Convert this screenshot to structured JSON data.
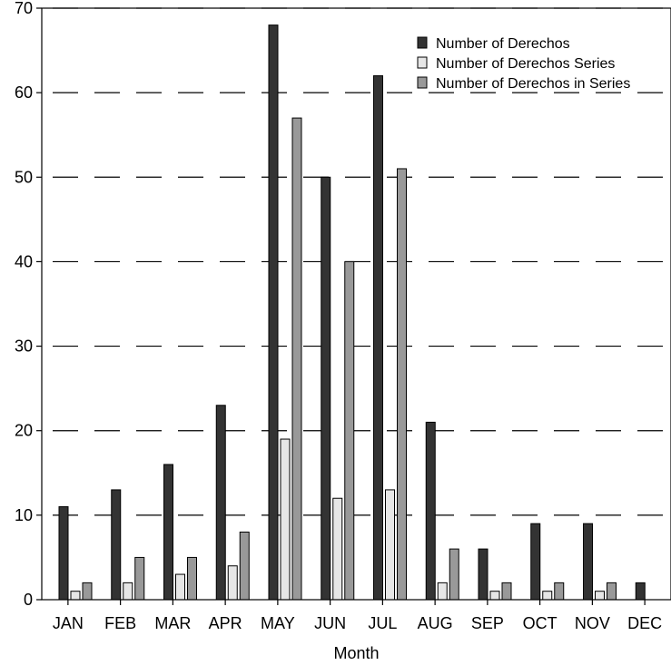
{
  "chart_data": {
    "type": "bar",
    "title": "",
    "xlabel": "Month",
    "ylabel": "",
    "ylim": [
      0,
      70
    ],
    "yticks": [
      0,
      10,
      20,
      30,
      40,
      50,
      60,
      70
    ],
    "grid": "dashed-horizontal",
    "legend_position": "top-right",
    "categories": [
      "JAN",
      "FEB",
      "MAR",
      "APR",
      "MAY",
      "JUN",
      "JUL",
      "AUG",
      "SEP",
      "OCT",
      "NOV",
      "DEC"
    ],
    "series": [
      {
        "name": "Number of Derechos",
        "color": "#333333",
        "values": [
          11,
          13,
          16,
          23,
          68,
          50,
          62,
          21,
          6,
          9,
          9,
          2
        ]
      },
      {
        "name": "Number of Derechos Series",
        "color": "#e6e6e6",
        "values": [
          1,
          2,
          3,
          4,
          19,
          12,
          13,
          2,
          1,
          1,
          1,
          0
        ]
      },
      {
        "name": "Number of Derechos in Series",
        "color": "#999999",
        "values": [
          2,
          5,
          5,
          8,
          57,
          40,
          51,
          6,
          2,
          2,
          2,
          0
        ]
      }
    ]
  }
}
